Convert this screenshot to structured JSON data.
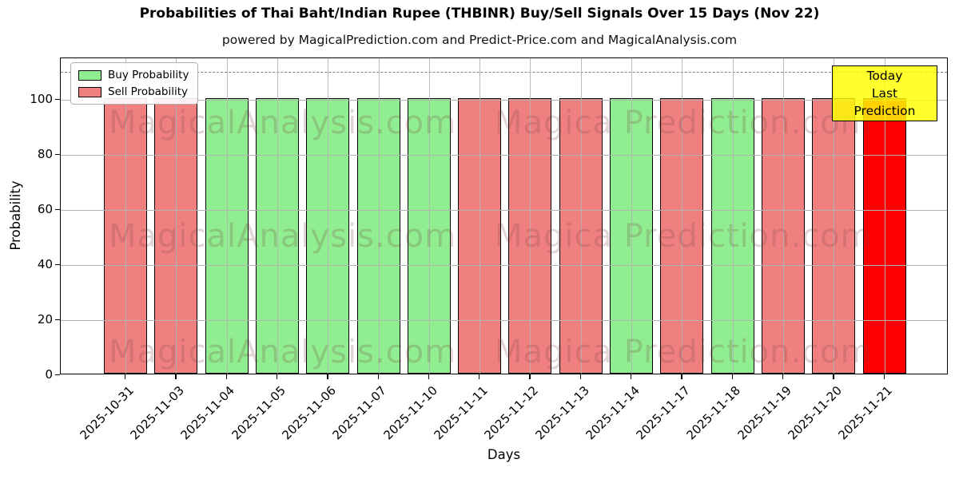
{
  "chart_data": {
    "type": "bar",
    "title": "Probabilities of Thai Baht/Indian Rupee (THBINR) Buy/Sell Signals Over 15 Days (Nov 22)",
    "subtitle": "powered by MagicalPrediction.com and Predict-Price.com and MagicalAnalysis.com",
    "xlabel": "Days",
    "ylabel": "Probability",
    "ylim": [
      0,
      115
    ],
    "yticks": [
      0,
      20,
      40,
      60,
      80,
      100
    ],
    "grid": true,
    "dashed_line_y": 110,
    "legend_position": "upper left",
    "categories": [
      "2025-10-31",
      "2025-11-03",
      "2025-11-04",
      "2025-11-05",
      "2025-11-06",
      "2025-11-07",
      "2025-11-10",
      "2025-11-11",
      "2025-11-12",
      "2025-11-13",
      "2025-11-14",
      "2025-11-17",
      "2025-11-18",
      "2025-11-19",
      "2025-11-20",
      "2025-11-21"
    ],
    "series": [
      {
        "name": "Buy Probability",
        "color": "#90ee90",
        "values": [
          0,
          0,
          100,
          100,
          100,
          100,
          100,
          0,
          0,
          0,
          100,
          0,
          100,
          0,
          0,
          0
        ]
      },
      {
        "name": "Sell Probability",
        "color": "#f08080",
        "values": [
          100,
          100,
          0,
          0,
          0,
          0,
          0,
          100,
          100,
          100,
          0,
          100,
          0,
          100,
          100,
          100
        ]
      }
    ],
    "bars": [
      {
        "date": "2025-10-31",
        "value": 100,
        "signal": "sell",
        "color": "#f08080"
      },
      {
        "date": "2025-11-03",
        "value": 100,
        "signal": "sell",
        "color": "#f08080"
      },
      {
        "date": "2025-11-04",
        "value": 100,
        "signal": "buy",
        "color": "#90ee90"
      },
      {
        "date": "2025-11-05",
        "value": 100,
        "signal": "buy",
        "color": "#90ee90"
      },
      {
        "date": "2025-11-06",
        "value": 100,
        "signal": "buy",
        "color": "#90ee90"
      },
      {
        "date": "2025-11-07",
        "value": 100,
        "signal": "buy",
        "color": "#90ee90"
      },
      {
        "date": "2025-11-10",
        "value": 100,
        "signal": "buy",
        "color": "#90ee90"
      },
      {
        "date": "2025-11-11",
        "value": 100,
        "signal": "sell",
        "color": "#f08080"
      },
      {
        "date": "2025-11-12",
        "value": 100,
        "signal": "sell",
        "color": "#f08080"
      },
      {
        "date": "2025-11-13",
        "value": 100,
        "signal": "sell",
        "color": "#f08080"
      },
      {
        "date": "2025-11-14",
        "value": 100,
        "signal": "buy",
        "color": "#90ee90"
      },
      {
        "date": "2025-11-17",
        "value": 100,
        "signal": "sell",
        "color": "#f08080"
      },
      {
        "date": "2025-11-18",
        "value": 100,
        "signal": "buy",
        "color": "#90ee90"
      },
      {
        "date": "2025-11-19",
        "value": 100,
        "signal": "sell",
        "color": "#f08080"
      },
      {
        "date": "2025-11-20",
        "value": 100,
        "signal": "sell",
        "color": "#f08080"
      },
      {
        "date": "2025-11-21",
        "value": 100,
        "signal": "sell",
        "color": "#ff0000",
        "highlight": true
      }
    ],
    "colors": {
      "grid": "#b3b3b3",
      "dashed_line": "#7f7f7f",
      "today_box_bg": "#ffff00",
      "bar_edge": "#000000"
    }
  },
  "legend": {
    "items": [
      {
        "label": "Buy Probability",
        "color": "#90ee90"
      },
      {
        "label": "Sell Probability",
        "color": "#f08080"
      }
    ]
  },
  "today_box": {
    "line1": "Today",
    "line2": "Last Prediction"
  },
  "watermark": {
    "left_text": "MagicalAnalysis.com",
    "right_text": "Magica Prediction.com"
  }
}
